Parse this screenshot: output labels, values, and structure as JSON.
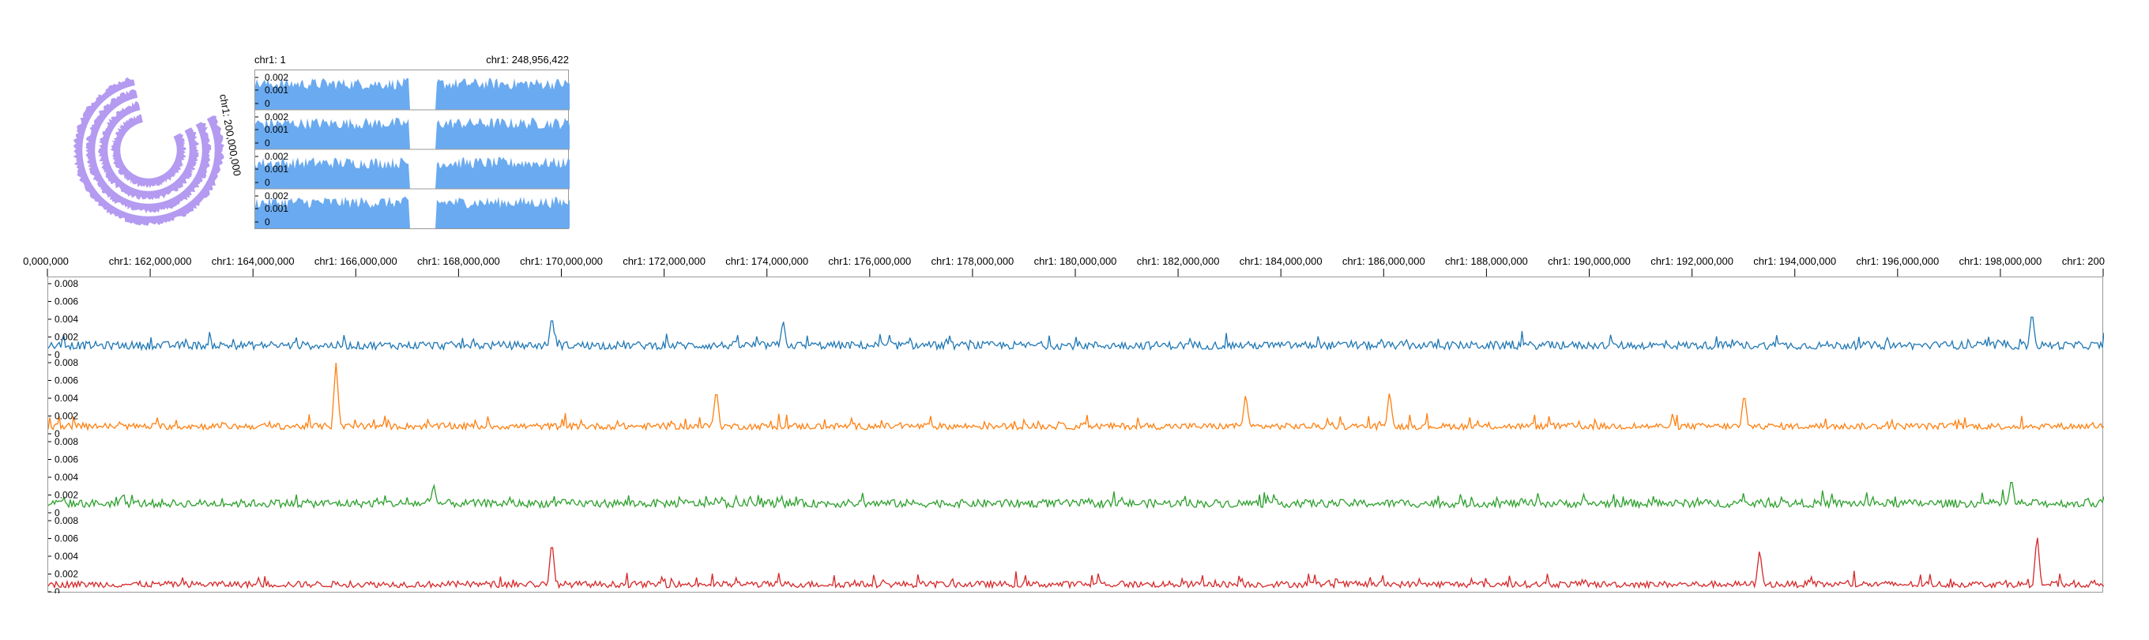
{
  "overview": {
    "start_label": "chr1: 1",
    "end_label": "chr1: 248,956,422",
    "tick_labels": [
      "0.002",
      "0.001",
      "0"
    ],
    "track_color": "#6aaaf0",
    "track_count": 4
  },
  "circular": {
    "color": "#b49af0",
    "position_label": "chr1: 200,000,000"
  },
  "main": {
    "tick_labels": [
      "0,000,000",
      "chr1: 162,000,000",
      "chr1: 164,000,000",
      "chr1: 166,000,000",
      "chr1: 168,000,000",
      "chr1: 170,000,000",
      "chr1: 172,000,000",
      "chr1: 174,000,000",
      "chr1: 176,000,000",
      "chr1: 178,000,000",
      "chr1: 180,000,000",
      "chr1: 182,000,000",
      "chr1: 184,000,000",
      "chr1: 186,000,000",
      "chr1: 188,000,000",
      "chr1: 190,000,000",
      "chr1: 192,000,000",
      "chr1: 194,000,000",
      "chr1: 196,000,000",
      "chr1: 198,000,000",
      "chr1: 200"
    ],
    "y_tick_labels": [
      "0.008",
      "0.006",
      "0.004",
      "0.002",
      "0"
    ]
  },
  "chart_data": [
    {
      "type": "area",
      "x_range": [
        1,
        248956422
      ],
      "ylim": [
        0,
        0.002
      ],
      "y_ticks": [
        0,
        0.001,
        0.002
      ],
      "series_count": 4,
      "description_values": {
        "gap_start": 122000000,
        "gap_end": 143000000,
        "typical_level": 0.0012
      }
    },
    {
      "type": "line",
      "x_range": [
        160000000,
        200000000
      ],
      "ylim": [
        0,
        0.008
      ],
      "y_ticks": [
        0,
        0.002,
        0.004,
        0.006,
        0.008
      ],
      "series": [
        {
          "color": "#1f77b4",
          "baseline": 0.001,
          "peaks": [
            [
              169800000,
              0.004
            ],
            [
              174300000,
              0.0035
            ],
            [
              198600000,
              0.0045
            ]
          ]
        },
        {
          "color": "#ff7f0e",
          "baseline": 0.0008,
          "peaks": [
            [
              165600000,
              0.0078
            ],
            [
              173000000,
              0.0048
            ],
            [
              183300000,
              0.0042
            ],
            [
              186100000,
              0.0045
            ],
            [
              193000000,
              0.0043
            ]
          ]
        },
        {
          "color": "#2ca02c",
          "baseline": 0.001,
          "peaks": [
            [
              167500000,
              0.0028
            ],
            [
              198200000,
              0.0035
            ]
          ]
        },
        {
          "color": "#d62728",
          "baseline": 0.0008,
          "peaks": [
            [
              169800000,
              0.0055
            ],
            [
              193300000,
              0.0045
            ],
            [
              198700000,
              0.0062
            ]
          ]
        }
      ]
    }
  ]
}
